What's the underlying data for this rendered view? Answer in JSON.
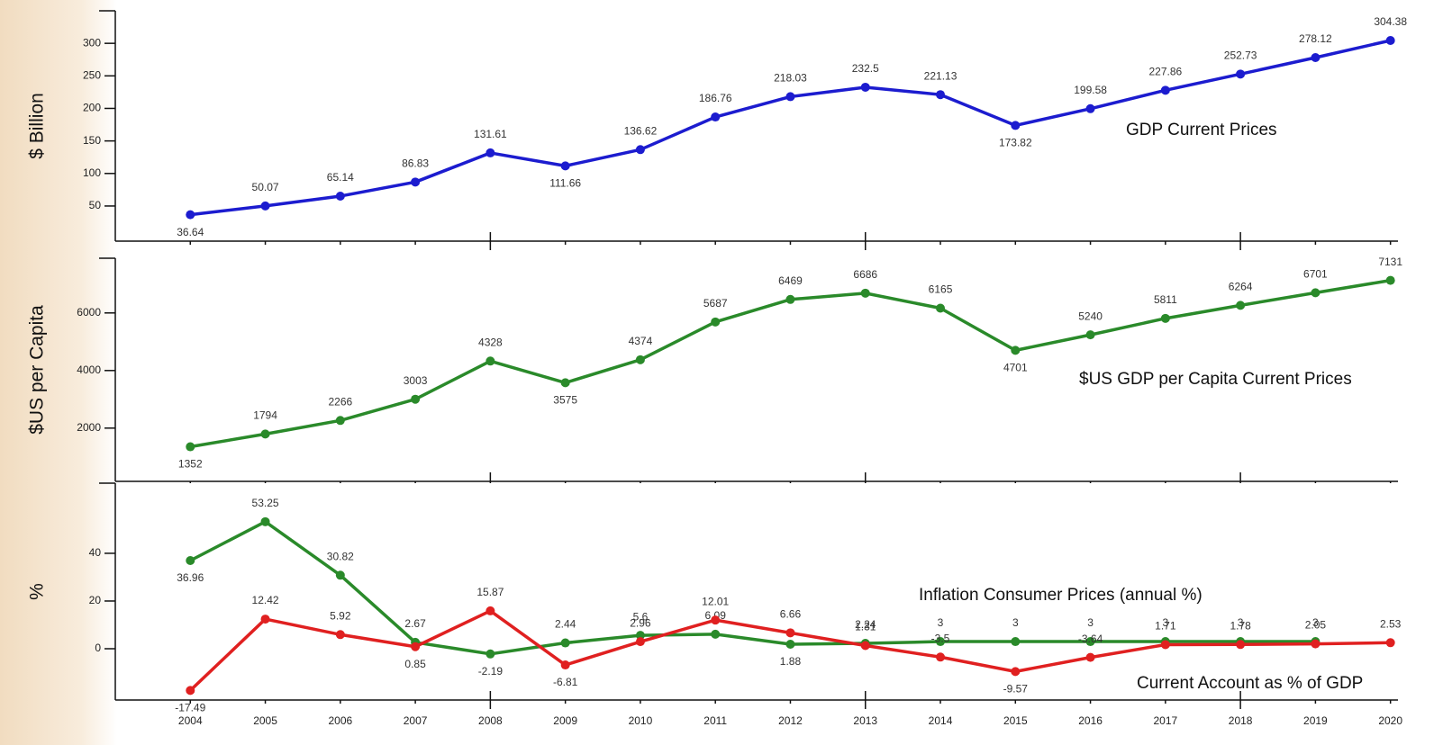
{
  "chart_data": [
    {
      "type": "line",
      "ylabel": "$ Billion",
      "x": [
        2004,
        2005,
        2006,
        2007,
        2008,
        2009,
        2010,
        2011,
        2012,
        2013,
        2014,
        2015,
        2016,
        2017,
        2018,
        2019,
        2020
      ],
      "xlim": [
        2003,
        2020.1
      ],
      "ylim": [
        -4,
        350
      ],
      "yticks": [
        50,
        100,
        150,
        200,
        250,
        300
      ],
      "series": [
        {
          "name": "GDP Current Prices",
          "color": "#1c1ccf",
          "values": [
            36.64,
            50.07,
            65.14,
            86.83,
            131.61,
            111.66,
            136.62,
            186.76,
            218.03,
            232.5,
            221.13,
            173.82,
            199.58,
            227.86,
            252.73,
            278.12,
            304.38
          ]
        }
      ]
    },
    {
      "type": "line",
      "ylabel": "$US per Capita",
      "x": [
        2004,
        2005,
        2006,
        2007,
        2008,
        2009,
        2010,
        2011,
        2012,
        2013,
        2014,
        2015,
        2016,
        2017,
        2018,
        2019,
        2020
      ],
      "xlim": [
        2003,
        2020.1
      ],
      "ylim": [
        150,
        7900
      ],
      "yticks": [
        2000,
        4000,
        6000
      ],
      "series": [
        {
          "name": "$US GDP per Capita Current Prices",
          "color": "#2a8a2a",
          "values": [
            1352,
            1794,
            2266,
            3003,
            4328,
            3575,
            4374,
            5687,
            6469,
            6686,
            6165,
            4701,
            5240,
            5811,
            6264,
            6701,
            7131
          ]
        }
      ]
    },
    {
      "type": "line",
      "ylabel": "%",
      "x": [
        2004,
        2005,
        2006,
        2007,
        2008,
        2009,
        2010,
        2011,
        2012,
        2013,
        2014,
        2015,
        2016,
        2017,
        2018,
        2019,
        2020
      ],
      "xlim": [
        2003,
        2020.1
      ],
      "ylim": [
        -21.5,
        69.4
      ],
      "yticks": [
        0,
        20,
        40
      ],
      "series": [
        {
          "name": "Inflation Consumer Prices (annual %)",
          "color": "#2a8a2a",
          "values": [
            36.96,
            53.25,
            30.82,
            2.67,
            -2.19,
            2.44,
            5.6,
            6.09,
            1.88,
            2.24,
            3,
            3,
            3,
            3,
            3,
            3,
            null
          ]
        },
        {
          "name": "Current Account as % of GDP",
          "color": "#e02020",
          "values": [
            -17.49,
            12.42,
            5.92,
            0.85,
            15.87,
            -6.81,
            2.96,
            12.01,
            6.66,
            1.31,
            -3.5,
            -9.57,
            -3.64,
            1.71,
            1.78,
            2.05,
            2.53
          ]
        }
      ]
    }
  ]
}
